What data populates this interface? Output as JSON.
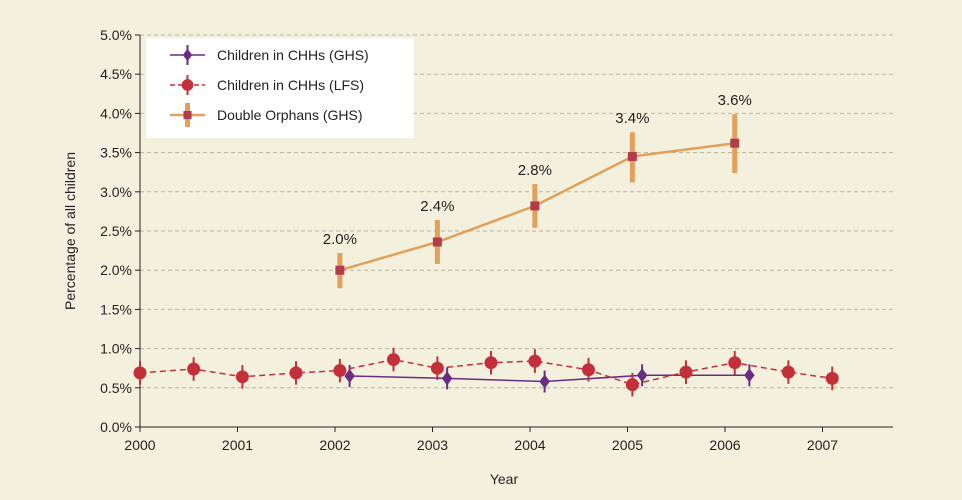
{
  "chart_data": {
    "type": "line",
    "title": "",
    "xlabel": "Year",
    "ylabel": "Percentage of all children",
    "xlim": [
      2000,
      2007.5
    ],
    "ylim": [
      0,
      5.0
    ],
    "x_ticks": [
      "2000",
      "2001",
      "2002",
      "2003",
      "2004",
      "2005",
      "2006",
      "2007"
    ],
    "y_ticks": [
      "0.0%",
      "0.5%",
      "1.0%",
      "1.5%",
      "2.0%",
      "2.5%",
      "3.0%",
      "3.5%",
      "4.0%",
      "4.5%",
      "5.0%"
    ],
    "grid": "horizontal dashed",
    "legend_position": "top-left",
    "series": [
      {
        "name": "Children in CHHs (GHS)",
        "color": "#6b2d82",
        "marker": "diamond",
        "line_style": "solid",
        "points": [
          {
            "x": 2002.15,
            "y": 0.65,
            "err": 0.14
          },
          {
            "x": 2003.15,
            "y": 0.62,
            "err": 0.14
          },
          {
            "x": 2004.15,
            "y": 0.58,
            "err": 0.14
          },
          {
            "x": 2005.15,
            "y": 0.66,
            "err": 0.14
          },
          {
            "x": 2006.25,
            "y": 0.66,
            "err": 0.14
          }
        ]
      },
      {
        "name": "Children in CHHs (LFS)",
        "color": "#c3303a",
        "marker": "circle",
        "line_style": "dashed",
        "points": [
          {
            "x": 2000.0,
            "y": 0.69,
            "err": 0.15
          },
          {
            "x": 2000.55,
            "y": 0.74,
            "err": 0.15
          },
          {
            "x": 2001.05,
            "y": 0.64,
            "err": 0.15
          },
          {
            "x": 2001.6,
            "y": 0.69,
            "err": 0.15
          },
          {
            "x": 2002.05,
            "y": 0.72,
            "err": 0.15
          },
          {
            "x": 2002.6,
            "y": 0.86,
            "err": 0.15
          },
          {
            "x": 2003.05,
            "y": 0.75,
            "err": 0.15
          },
          {
            "x": 2003.6,
            "y": 0.82,
            "err": 0.15
          },
          {
            "x": 2004.05,
            "y": 0.84,
            "err": 0.15
          },
          {
            "x": 2004.6,
            "y": 0.73,
            "err": 0.15
          },
          {
            "x": 2005.05,
            "y": 0.54,
            "err": 0.15
          },
          {
            "x": 2005.6,
            "y": 0.7,
            "err": 0.15
          },
          {
            "x": 2006.1,
            "y": 0.82,
            "err": 0.15
          },
          {
            "x": 2006.65,
            "y": 0.7,
            "err": 0.15
          },
          {
            "x": 2007.1,
            "y": 0.62,
            "err": 0.15
          }
        ]
      },
      {
        "name": "Double Orphans (GHS)",
        "color": "#e2a05a",
        "marker_color": "#b23c4c",
        "marker": "square",
        "line_style": "solid",
        "points": [
          {
            "x": 2002.05,
            "y": 2.0,
            "label": "2.0%",
            "err_low": 0.23,
            "err_high": 0.22
          },
          {
            "x": 2003.05,
            "y": 2.36,
            "label": "2.4%",
            "err_low": 0.28,
            "err_high": 0.28
          },
          {
            "x": 2004.05,
            "y": 2.82,
            "label": "2.8%",
            "err_low": 0.28,
            "err_high": 0.28
          },
          {
            "x": 2005.05,
            "y": 3.45,
            "label": "3.4%",
            "err_low": 0.33,
            "err_high": 0.31
          },
          {
            "x": 2006.1,
            "y": 3.62,
            "label": "3.6%",
            "err_low": 0.38,
            "err_high": 0.37
          }
        ]
      }
    ]
  }
}
